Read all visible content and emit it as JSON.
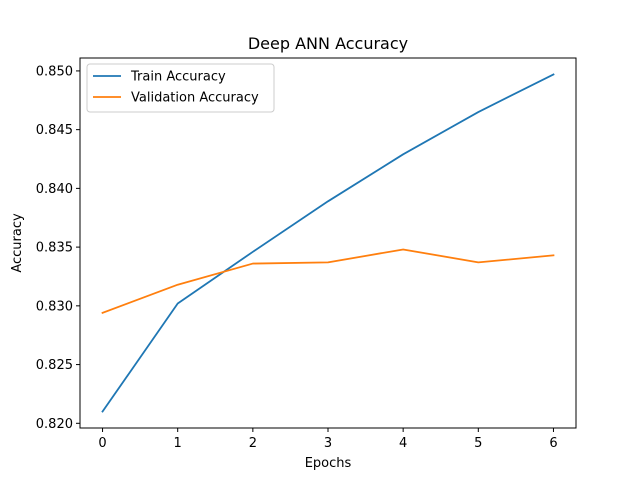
{
  "chart_data": {
    "type": "line",
    "title": "Deep ANN Accuracy",
    "xlabel": "Epochs",
    "ylabel": "Accuracy",
    "x": [
      0,
      1,
      2,
      3,
      4,
      5,
      6
    ],
    "xlim": [
      -0.3,
      6.3
    ],
    "ylim": [
      0.8196,
      0.8511
    ],
    "xticks": [
      "0",
      "1",
      "2",
      "3",
      "4",
      "5",
      "6"
    ],
    "yticks": [
      "0.820",
      "0.825",
      "0.830",
      "0.835",
      "0.840",
      "0.845",
      "0.850"
    ],
    "grid": false,
    "legend_position": "upper-left",
    "series": [
      {
        "name": "Train Accuracy",
        "color": "#1f77b4",
        "values": [
          0.821,
          0.8302,
          0.8346,
          0.8389,
          0.8429,
          0.8465,
          0.8497
        ]
      },
      {
        "name": "Validation Accuracy",
        "color": "#ff7f0e",
        "values": [
          0.8294,
          0.8318,
          0.8336,
          0.8337,
          0.8348,
          0.8337,
          0.8343
        ]
      }
    ]
  }
}
